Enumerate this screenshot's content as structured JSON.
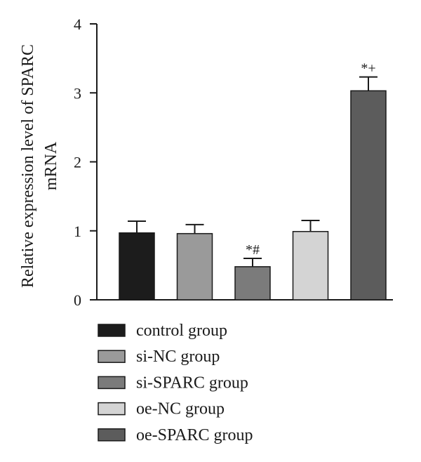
{
  "chart_data": {
    "type": "bar",
    "categories": [
      "control group",
      "si-NC group",
      "si-SPARC group",
      "oe-NC group",
      "oe-SPARC group"
    ],
    "values": [
      0.97,
      0.96,
      0.48,
      0.99,
      3.03
    ],
    "errors": [
      0.17,
      0.13,
      0.12,
      0.16,
      0.2
    ],
    "annotations": [
      "",
      "",
      "*#",
      "",
      "*+"
    ],
    "colors": [
      "#1c1c1c",
      "#9a9a9a",
      "#7b7b7b",
      "#d4d4d4",
      "#5c5c5c"
    ],
    "ylabel_lines": [
      "Relative expression level of SPARC",
      "mRNA"
    ],
    "ylim": [
      0,
      4
    ],
    "yticks": [
      0,
      1,
      2,
      3,
      4
    ],
    "legend": [
      "control group",
      "si-NC group",
      "si-SPARC group",
      "oe-NC group",
      "oe-SPARC group"
    ],
    "legend_position": "bottom",
    "grid": false
  }
}
